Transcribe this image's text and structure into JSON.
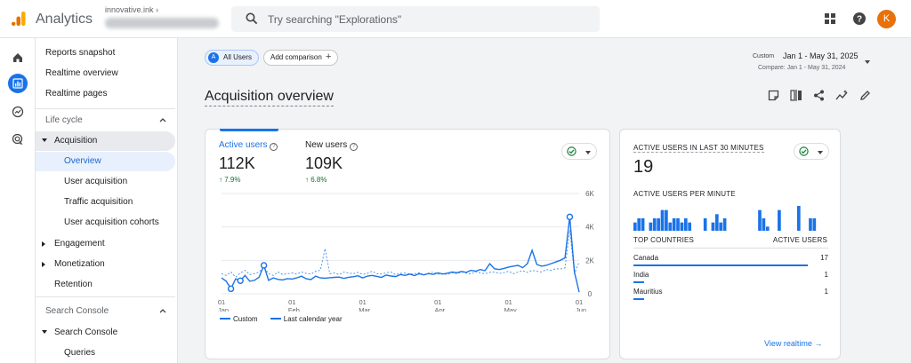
{
  "app": {
    "title": "Analytics",
    "account": "innovative.ink",
    "search_placeholder": "Try searching \"Explorations\"",
    "avatar_letter": "K",
    "accent": "#1a73e8"
  },
  "sidebar": {
    "top_items": [
      "Reports snapshot",
      "Realtime overview",
      "Realtime pages"
    ],
    "lifecycle_label": "Life cycle",
    "acquisition_label": "Acquisition",
    "acquisition_children": [
      "Overview",
      "User acquisition",
      "Traffic acquisition",
      "User acquisition cohorts"
    ],
    "engagement_label": "Engagement",
    "monetization_label": "Monetization",
    "retention_label": "Retention",
    "search_console_section": "Search Console",
    "search_console_label": "Search Console",
    "queries_label": "Queries"
  },
  "header": {
    "all_users_badge": "A",
    "all_users_label": "All Users",
    "add_comparison_label": "Add comparison",
    "date_tag": "Custom",
    "date_range": "Jan 1 - May 31, 2025",
    "compare_range": "Compare: Jan 1 - May 31, 2024",
    "page_title": "Acquisition overview"
  },
  "main_card": {
    "active_users_label": "Active users",
    "active_users_value": "112K",
    "active_users_change": "7.9%",
    "new_users_label": "New users",
    "new_users_value": "109K",
    "new_users_change": "6.8%",
    "legend_custom": "Custom",
    "legend_last_year": "Last calendar year"
  },
  "realtime": {
    "title": "ACTIVE USERS IN LAST 30 MINUTES",
    "value": "19",
    "per_minute_label": "ACTIVE USERS PER MINUTE",
    "top_countries_label": "TOP COUNTRIES",
    "active_users_col": "ACTIVE USERS",
    "countries": [
      {
        "name": "Canada",
        "value": "17",
        "share": 1.0
      },
      {
        "name": "India",
        "value": "1",
        "share": 0.06
      },
      {
        "name": "Mauritius",
        "value": "1",
        "share": 0.06
      }
    ],
    "per_minute_values": [
      2,
      3,
      3,
      0,
      2,
      3,
      3,
      5,
      5,
      2,
      3,
      3,
      2,
      3,
      2,
      0,
      0,
      0,
      3,
      0,
      2,
      4,
      2,
      3,
      0,
      0,
      0,
      0,
      0,
      0,
      0,
      0,
      5,
      3,
      1,
      0,
      0,
      5,
      0,
      0,
      0,
      0,
      6,
      0,
      0,
      3,
      3,
      0,
      0,
      0
    ],
    "view_realtime_label": "View realtime"
  },
  "chart_data": {
    "type": "line",
    "x_tick_labels": [
      {
        "day": "01",
        "month": "Jan"
      },
      {
        "day": "01",
        "month": "Feb"
      },
      {
        "day": "01",
        "month": "Mar"
      },
      {
        "day": "01",
        "month": "Apr"
      },
      {
        "day": "01",
        "month": "May"
      },
      {
        "day": "01",
        "month": "Jun"
      }
    ],
    "y_ticks": [
      "0",
      "2K",
      "4K",
      "6K"
    ],
    "ylim": [
      0,
      6000
    ],
    "series": [
      {
        "name": "Custom",
        "style": "solid",
        "values": [
          950,
          750,
          300,
          900,
          780,
          1100,
          750,
          800,
          1000,
          1700,
          800,
          950,
          860,
          830,
          910,
          880,
          950,
          1050,
          900,
          850,
          1050,
          950,
          930,
          960,
          980,
          1000,
          920,
          990,
          1020,
          1080,
          950,
          1060,
          1100,
          1040,
          980,
          1120,
          1060,
          1030,
          1150,
          1100,
          1180,
          1090,
          1200,
          1130,
          1210,
          1160,
          1250,
          1180,
          1230,
          1300,
          1260,
          1340,
          1280,
          1400,
          1350,
          1450,
          1380,
          1800,
          1500,
          1450,
          1520,
          1600,
          1650,
          1700,
          1560,
          1800,
          2600,
          1750,
          1650,
          1700,
          1800,
          1900,
          2000,
          2150,
          4600,
          1300,
          100
        ]
      },
      {
        "name": "Last calendar year",
        "style": "dashed",
        "values": [
          1200,
          1100,
          1300,
          1000,
          1250,
          1400,
          1150,
          1200,
          1300,
          1600,
          1200,
          1100,
          1300,
          1150,
          1200,
          1250,
          1180,
          1300,
          1220,
          1180,
          1350,
          1400,
          2700,
          1200,
          1250,
          1150,
          1300,
          1240,
          1200,
          1280,
          1160,
          1220,
          1350,
          1200,
          1180,
          1260,
          1300,
          1140,
          1220,
          1240,
          1180,
          1200,
          1260,
          1120,
          1230,
          1300,
          1180,
          1210,
          1150,
          1260,
          1200,
          1300,
          1240,
          1180,
          1320,
          1250,
          1200,
          1280,
          1300,
          1220,
          1260,
          1350,
          1200,
          1300,
          1380,
          1280,
          1400,
          1350,
          1300,
          1450,
          1400,
          1500,
          1480,
          1550,
          3800,
          1200,
          1900
        ]
      }
    ],
    "highlighted_points_custom": [
      2,
      4,
      9,
      74
    ],
    "title": "",
    "xlabel": "",
    "ylabel": "",
    "grid": true,
    "legend": "bottom-left"
  }
}
